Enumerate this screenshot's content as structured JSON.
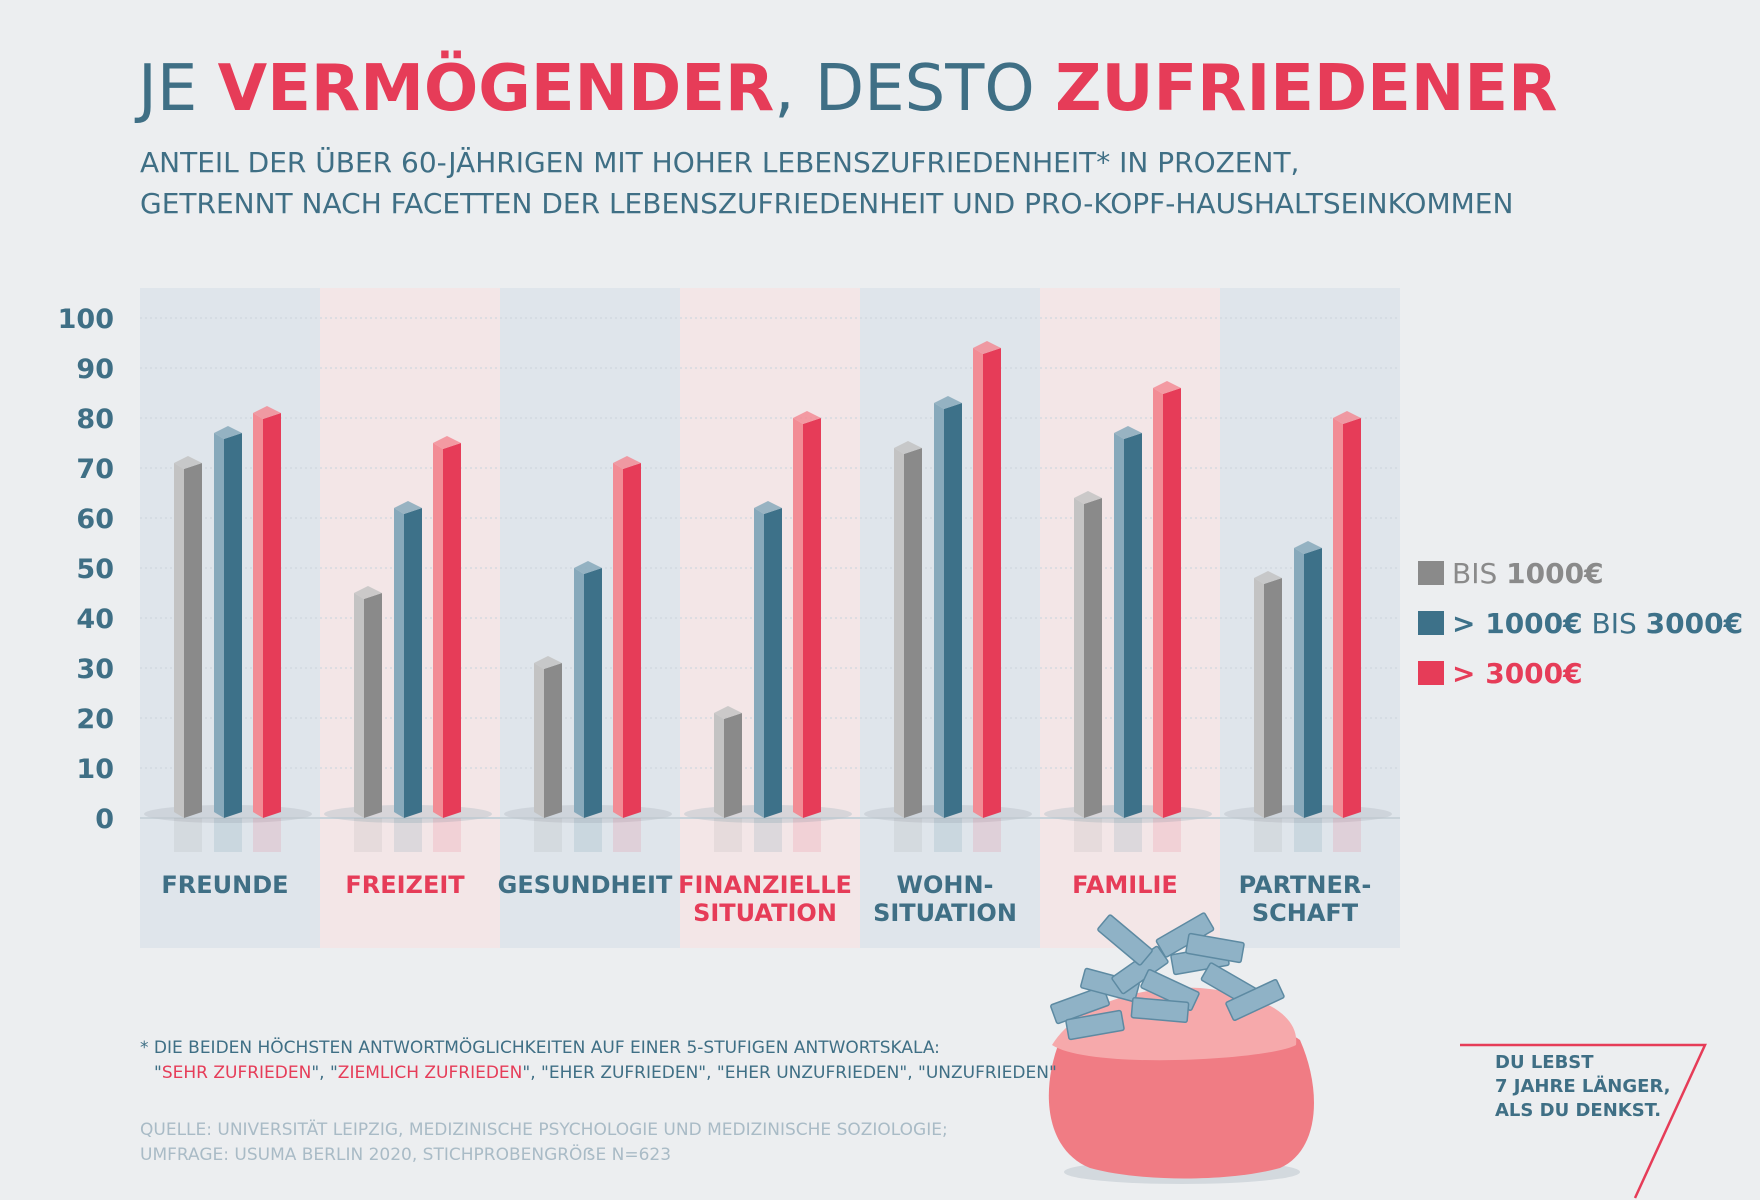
{
  "header": {
    "title_parts": [
      {
        "text": "JE ",
        "highlight": false
      },
      {
        "text": "VERMÖGENDER",
        "highlight": true
      },
      {
        "text": ", DESTO ",
        "highlight": false
      },
      {
        "text": "ZUFRIEDENER",
        "highlight": true
      }
    ],
    "subtitle_line1": "ANTEIL DER ÜBER 60-JÄHRIGEN MIT HOHER LEBENSZUFRIEDENHEIT* IN PROZENT,",
    "subtitle_line2": "GETRENNT NACH FACETTEN DER LEBENSZUFRIEDENHEIT UND PRO-KOPF-HAUSHALTSEINKOMMEN"
  },
  "chart_data": {
    "type": "bar",
    "categories": [
      {
        "lines": [
          "FREUNDE"
        ],
        "color": "#3f6f85"
      },
      {
        "lines": [
          "FREIZEIT"
        ],
        "color": "#e63c58"
      },
      {
        "lines": [
          "GESUNDHEIT"
        ],
        "color": "#3f6f85"
      },
      {
        "lines": [
          "FINANZIELLE",
          "SITUATION"
        ],
        "color": "#e63c58"
      },
      {
        "lines": [
          "WOHN-",
          "SITUATION"
        ],
        "color": "#3f6f85"
      },
      {
        "lines": [
          "FAMILIE"
        ],
        "color": "#e63c58"
      },
      {
        "lines": [
          "PARTNER-",
          "SCHAFT"
        ],
        "color": "#3f6f85"
      }
    ],
    "series": [
      {
        "name": "BIS 1000€",
        "color": "#8a8a8a",
        "light": "#c3c3c3",
        "values": [
          71,
          45,
          31,
          21,
          74,
          64,
          48
        ]
      },
      {
        "name": "> 1000€ BIS 3000€",
        "color": "#3d7189",
        "light": "#87a9bb",
        "values": [
          77,
          62,
          50,
          62,
          83,
          77,
          54
        ]
      },
      {
        "name": "> 3000€",
        "color": "#e63c58",
        "light": "#f28c95",
        "values": [
          81,
          75,
          71,
          80,
          94,
          86,
          80
        ]
      }
    ],
    "ylim": [
      0,
      100
    ],
    "yticks": [
      "0",
      "10",
      "20",
      "30",
      "40",
      "50",
      "60",
      "70",
      "80",
      "90",
      "100"
    ],
    "grid": true,
    "legend_position": "right",
    "panel_colors": [
      "#dfe5eb",
      "#f3e6e7"
    ]
  },
  "legend": [
    {
      "parts": [
        {
          "text": "BIS ",
          "bold": false
        },
        {
          "text": "1000€",
          "bold": true
        }
      ],
      "color": "#8a8a8a"
    },
    {
      "parts": [
        {
          "text": "> 1000€",
          "bold": true
        },
        {
          "text": " BIS ",
          "bold": false
        },
        {
          "text": "3000€",
          "bold": true
        }
      ],
      "color": "#3d7189"
    },
    {
      "parts": [
        {
          "text": "> 3000€",
          "bold": true
        }
      ],
      "color": "#e63c58"
    }
  ],
  "footnote": {
    "line1": "* DIE BEIDEN HÖCHSTEN ANTWORTMÖGLICHKEITEN AUF EINER 5-STUFIGEN ANTWORTSKALA:",
    "line2_parts": [
      {
        "text": "\"",
        "red": false
      },
      {
        "text": "SEHR ZUFRIEDEN",
        "red": true
      },
      {
        "text": "\", \"",
        "red": false
      },
      {
        "text": "ZIEMLICH ZUFRIEDEN",
        "red": true
      },
      {
        "text": "\", \"EHER ZUFRIEDEN\", \"EHER UNZUFRIEDEN\", \"UNZUFRIEDEN\"",
        "red": false
      }
    ]
  },
  "source": {
    "line1": "QUELLE: UNIVERSITÄT LEIPZIG, MEDIZINISCHE PSYCHOLOGIE UND MEDIZINISCHE SOZIOLOGIE;",
    "line2": "UMFRAGE: USUMA BERLIN 2020, STICHPROBENGRÖẞE N=623"
  },
  "slogan": {
    "lines": [
      "DU LEBST",
      "7 JAHRE LÄNGER,",
      "ALS DU DENKST."
    ],
    "logo_digit": "7"
  },
  "illustration": {
    "name": "money-bag-illustration",
    "colors": [
      "#f07c84",
      "#f6a9ab",
      "#8fb2c6"
    ]
  }
}
